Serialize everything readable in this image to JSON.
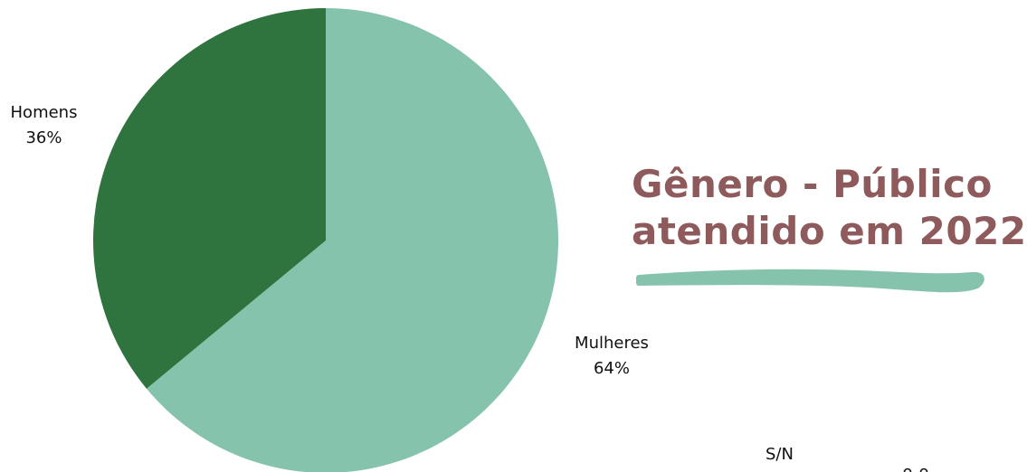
{
  "chart_data": {
    "type": "pie",
    "title": "Gênero - Público atendido em 2022",
    "title_lines": [
      "Gênero - Público",
      "atendido em 2022"
    ],
    "slices": [
      {
        "label": "Mulheres",
        "value": 64,
        "percent_label": "64%",
        "color": "#86c3ad"
      },
      {
        "label": "Homens",
        "value": 36,
        "percent_label": "36%",
        "color": "#2f743e"
      }
    ],
    "start": "12 o'clock",
    "direction": "clockwise",
    "legend": "none (labels beside slices)"
  },
  "decor": {
    "underline_color": "#86c3ad",
    "title_color": "#8e5a5c"
  },
  "footer": {
    "partial_label": "S/N"
  }
}
